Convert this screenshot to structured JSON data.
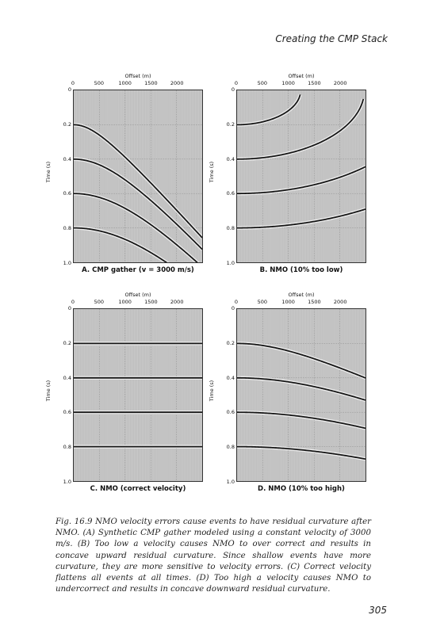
{
  "header": "Creating the CMP Stack",
  "page_number": "305",
  "figure": {
    "caption": "Fig. 16.9 NMO velocity errors cause events to have residual curvature after NMO. (A) Synthetic CMP gather modeled using a constant velocity of 3000 m/s. (B) Too low a velocity causes NMO to over correct and results in concave upward residual curvature. Since shallow events have more curvature, they are more sensitive to velocity errors. (C) Correct velocity flattens all events at all times. (D) Too high a velocity causes NMO to undercorrect and results in concave downward residual curvature."
  },
  "axes": {
    "x_title": "Offset (m)",
    "y_title": "Time (s)",
    "x_ticks": [
      "0",
      "500",
      "1000",
      "1500",
      "2000"
    ],
    "y_ticks": [
      "0",
      "0.2",
      "0.4",
      "0.6",
      "0.8",
      "1.0"
    ]
  },
  "panels": [
    {
      "id": "A",
      "label": "A. CMP gather (v = 3000 m/s)",
      "nmo_velocity_factor": null
    },
    {
      "id": "B",
      "label": "B. NMO (10% too low)",
      "nmo_velocity_factor": 0.9
    },
    {
      "id": "C",
      "label": "C. NMO (correct velocity)",
      "nmo_velocity_factor": 1.0
    },
    {
      "id": "D",
      "label": "D. NMO (10% too high)",
      "nmo_velocity_factor": 1.1
    }
  ],
  "chart_data": [
    {
      "type": "line",
      "title": "A. CMP gather (v = 3000 m/s)",
      "xlabel": "Offset (m)",
      "ylabel": "Time (s)",
      "xlim": [
        0,
        2500
      ],
      "ylim": [
        1.0,
        0
      ],
      "velocity": 3000,
      "series": [
        {
          "t0": 0.2
        },
        {
          "t0": 0.4
        },
        {
          "t0": 0.6
        },
        {
          "t0": 0.8
        }
      ]
    },
    {
      "type": "line",
      "title": "B. NMO (10% too low)",
      "xlabel": "Offset (m)",
      "ylabel": "Time (s)",
      "xlim": [
        0,
        2500
      ],
      "ylim": [
        1.0,
        0
      ],
      "velocity": 3000,
      "nmo_velocity": 2700,
      "series": [
        {
          "t0": 0.2
        },
        {
          "t0": 0.4
        },
        {
          "t0": 0.6
        },
        {
          "t0": 0.8
        }
      ]
    },
    {
      "type": "line",
      "title": "C. NMO (correct velocity)",
      "xlabel": "Offset (m)",
      "ylabel": "Time (s)",
      "xlim": [
        0,
        2500
      ],
      "ylim": [
        1.0,
        0
      ],
      "velocity": 3000,
      "nmo_velocity": 3000,
      "series": [
        {
          "t0": 0.2
        },
        {
          "t0": 0.4
        },
        {
          "t0": 0.6
        },
        {
          "t0": 0.8
        }
      ]
    },
    {
      "type": "line",
      "title": "D. NMO (10% too high)",
      "xlabel": "Offset (m)",
      "ylabel": "Time (s)",
      "xlim": [
        0,
        2500
      ],
      "ylim": [
        1.0,
        0
      ],
      "velocity": 3000,
      "nmo_velocity": 3300,
      "series": [
        {
          "t0": 0.2
        },
        {
          "t0": 0.4
        },
        {
          "t0": 0.6
        },
        {
          "t0": 0.8
        }
      ]
    }
  ]
}
